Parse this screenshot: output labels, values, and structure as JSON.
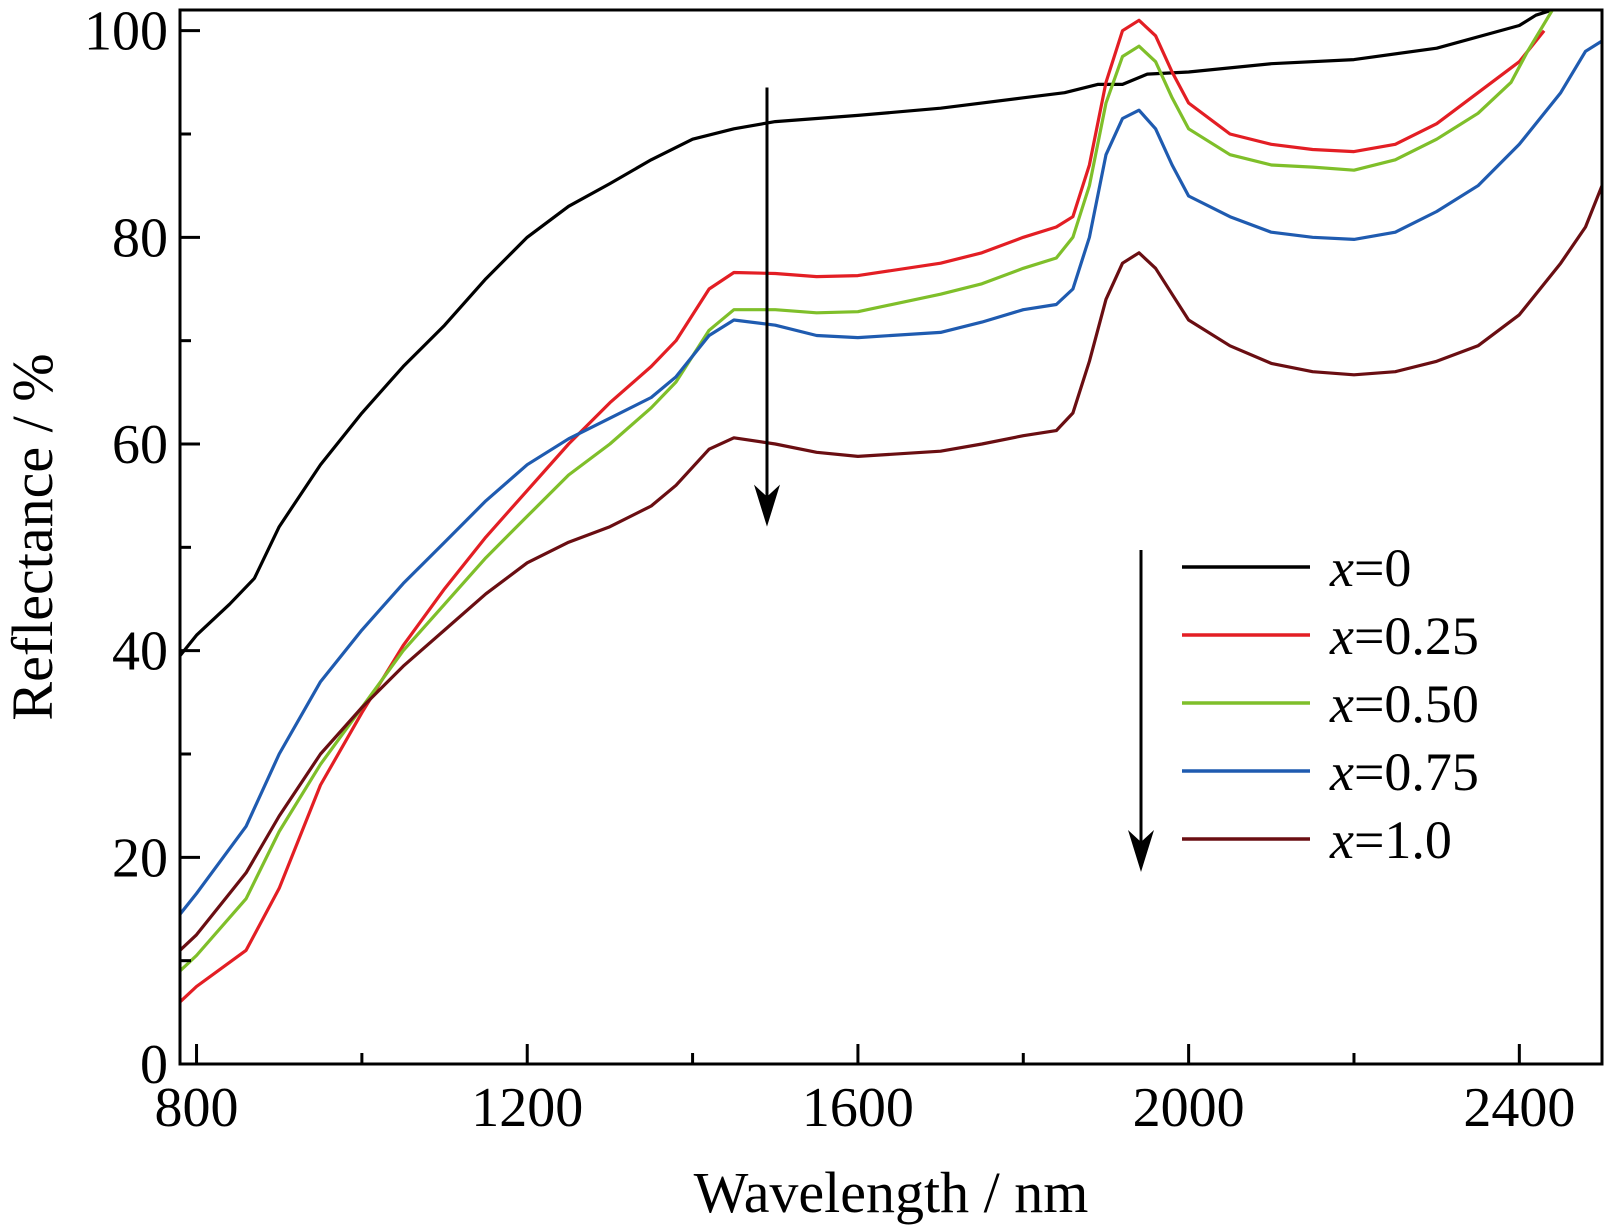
{
  "chart_data": {
    "type": "line",
    "xlabel": "Wavelength / nm",
    "ylabel": "Reflectance / %",
    "xlim": [
      780,
      2500
    ],
    "ylim": [
      0,
      102
    ],
    "xticks": [
      800,
      1200,
      1600,
      2000,
      2400
    ],
    "xticks_minor": [
      1000,
      1400,
      1800,
      2200
    ],
    "yticks": [
      0,
      20,
      40,
      60,
      80,
      100
    ],
    "yticks_minor": [
      10,
      30,
      50,
      70,
      90
    ],
    "legend_position": "right-center",
    "legend_arrow": "down",
    "series": [
      {
        "name": "x=0",
        "var": "x",
        "value": "=0",
        "color": "#000000",
        "points": [
          [
            780,
            39.5
          ],
          [
            800,
            41.5
          ],
          [
            840,
            44.5
          ],
          [
            870,
            47
          ],
          [
            900,
            52
          ],
          [
            950,
            58
          ],
          [
            1000,
            63
          ],
          [
            1050,
            67.5
          ],
          [
            1100,
            71.5
          ],
          [
            1150,
            76
          ],
          [
            1200,
            80
          ],
          [
            1250,
            83
          ],
          [
            1300,
            85.2
          ],
          [
            1350,
            87.5
          ],
          [
            1400,
            89.5
          ],
          [
            1450,
            90.5
          ],
          [
            1500,
            91.2
          ],
          [
            1600,
            91.8
          ],
          [
            1700,
            92.5
          ],
          [
            1800,
            93.5
          ],
          [
            1850,
            94
          ],
          [
            1890,
            94.8
          ],
          [
            1920,
            94.8
          ],
          [
            1950,
            95.8
          ],
          [
            2000,
            96
          ],
          [
            2100,
            96.8
          ],
          [
            2200,
            97.2
          ],
          [
            2300,
            98.3
          ],
          [
            2400,
            100.5
          ],
          [
            2420,
            101.5
          ],
          [
            2440,
            102
          ]
        ]
      },
      {
        "name": "x=0.25",
        "var": "x",
        "value": "=0.25",
        "color": "#e31e24",
        "points": [
          [
            780,
            6
          ],
          [
            800,
            7.5
          ],
          [
            860,
            11
          ],
          [
            900,
            17
          ],
          [
            950,
            27
          ],
          [
            1000,
            34
          ],
          [
            1050,
            40.5
          ],
          [
            1100,
            46
          ],
          [
            1150,
            51
          ],
          [
            1200,
            55.5
          ],
          [
            1250,
            60
          ],
          [
            1300,
            64
          ],
          [
            1350,
            67.5
          ],
          [
            1380,
            70
          ],
          [
            1420,
            75
          ],
          [
            1450,
            76.6
          ],
          [
            1500,
            76.5
          ],
          [
            1550,
            76.2
          ],
          [
            1600,
            76.3
          ],
          [
            1700,
            77.5
          ],
          [
            1750,
            78.5
          ],
          [
            1800,
            80
          ],
          [
            1840,
            81
          ],
          [
            1860,
            82
          ],
          [
            1880,
            87
          ],
          [
            1900,
            95
          ],
          [
            1920,
            100
          ],
          [
            1940,
            101
          ],
          [
            1960,
            99.5
          ],
          [
            1980,
            96
          ],
          [
            2000,
            93
          ],
          [
            2050,
            90
          ],
          [
            2100,
            89
          ],
          [
            2150,
            88.5
          ],
          [
            2200,
            88.3
          ],
          [
            2250,
            89
          ],
          [
            2300,
            91
          ],
          [
            2350,
            94
          ],
          [
            2400,
            97
          ],
          [
            2430,
            100
          ]
        ]
      },
      {
        "name": "x=0.50",
        "var": "x",
        "value": "=0.50",
        "color": "#7fbf2a",
        "points": [
          [
            780,
            9
          ],
          [
            800,
            10.5
          ],
          [
            860,
            16
          ],
          [
            900,
            22.5
          ],
          [
            950,
            29
          ],
          [
            1000,
            34.5
          ],
          [
            1050,
            40
          ],
          [
            1100,
            44.5
          ],
          [
            1150,
            49
          ],
          [
            1200,
            53
          ],
          [
            1250,
            57
          ],
          [
            1300,
            60
          ],
          [
            1350,
            63.5
          ],
          [
            1380,
            66
          ],
          [
            1420,
            71
          ],
          [
            1450,
            73
          ],
          [
            1500,
            73
          ],
          [
            1550,
            72.7
          ],
          [
            1600,
            72.8
          ],
          [
            1700,
            74.5
          ],
          [
            1750,
            75.5
          ],
          [
            1800,
            77
          ],
          [
            1840,
            78
          ],
          [
            1860,
            80
          ],
          [
            1880,
            85
          ],
          [
            1900,
            93
          ],
          [
            1920,
            97.5
          ],
          [
            1940,
            98.5
          ],
          [
            1960,
            97
          ],
          [
            1980,
            93.5
          ],
          [
            2000,
            90.5
          ],
          [
            2050,
            88
          ],
          [
            2100,
            87
          ],
          [
            2150,
            86.8
          ],
          [
            2200,
            86.5
          ],
          [
            2250,
            87.5
          ],
          [
            2300,
            89.5
          ],
          [
            2350,
            92
          ],
          [
            2390,
            95
          ],
          [
            2410,
            98
          ],
          [
            2440,
            102
          ]
        ]
      },
      {
        "name": "x=0.75",
        "var": "x",
        "value": "=0.75",
        "color": "#1f5bb0",
        "points": [
          [
            780,
            14.5
          ],
          [
            800,
            16.5
          ],
          [
            860,
            23
          ],
          [
            900,
            30
          ],
          [
            950,
            37
          ],
          [
            1000,
            42
          ],
          [
            1050,
            46.5
          ],
          [
            1100,
            50.5
          ],
          [
            1150,
            54.5
          ],
          [
            1200,
            58
          ],
          [
            1250,
            60.5
          ],
          [
            1300,
            62.5
          ],
          [
            1350,
            64.5
          ],
          [
            1380,
            66.5
          ],
          [
            1420,
            70.5
          ],
          [
            1450,
            72
          ],
          [
            1500,
            71.5
          ],
          [
            1550,
            70.5
          ],
          [
            1600,
            70.3
          ],
          [
            1700,
            70.8
          ],
          [
            1750,
            71.8
          ],
          [
            1800,
            73
          ],
          [
            1840,
            73.5
          ],
          [
            1860,
            75
          ],
          [
            1880,
            80
          ],
          [
            1900,
            88
          ],
          [
            1920,
            91.5
          ],
          [
            1940,
            92.3
          ],
          [
            1960,
            90.5
          ],
          [
            1980,
            87
          ],
          [
            2000,
            84
          ],
          [
            2050,
            82
          ],
          [
            2100,
            80.5
          ],
          [
            2150,
            80
          ],
          [
            2200,
            79.8
          ],
          [
            2250,
            80.5
          ],
          [
            2300,
            82.5
          ],
          [
            2350,
            85
          ],
          [
            2400,
            89
          ],
          [
            2450,
            94
          ],
          [
            2480,
            98
          ],
          [
            2500,
            99
          ]
        ]
      },
      {
        "name": "x=1.0",
        "var": "x",
        "value": "=1.0",
        "color": "#6a0e12",
        "points": [
          [
            780,
            11
          ],
          [
            800,
            12.5
          ],
          [
            860,
            18.5
          ],
          [
            900,
            24
          ],
          [
            950,
            30
          ],
          [
            1000,
            34.5
          ],
          [
            1050,
            38.5
          ],
          [
            1100,
            42
          ],
          [
            1150,
            45.5
          ],
          [
            1200,
            48.5
          ],
          [
            1250,
            50.5
          ],
          [
            1300,
            52
          ],
          [
            1350,
            54
          ],
          [
            1380,
            56
          ],
          [
            1420,
            59.5
          ],
          [
            1450,
            60.6
          ],
          [
            1500,
            60
          ],
          [
            1550,
            59.2
          ],
          [
            1600,
            58.8
          ],
          [
            1700,
            59.3
          ],
          [
            1750,
            60
          ],
          [
            1800,
            60.8
          ],
          [
            1840,
            61.3
          ],
          [
            1860,
            63
          ],
          [
            1880,
            68
          ],
          [
            1900,
            74
          ],
          [
            1920,
            77.5
          ],
          [
            1940,
            78.5
          ],
          [
            1960,
            77
          ],
          [
            1980,
            74.5
          ],
          [
            2000,
            72
          ],
          [
            2050,
            69.5
          ],
          [
            2100,
            67.8
          ],
          [
            2150,
            67
          ],
          [
            2200,
            66.7
          ],
          [
            2250,
            67
          ],
          [
            2300,
            68
          ],
          [
            2350,
            69.5
          ],
          [
            2400,
            72.5
          ],
          [
            2450,
            77.5
          ],
          [
            2480,
            81
          ],
          [
            2500,
            85
          ]
        ]
      }
    ],
    "annotation_arrow": {
      "x": 1490,
      "y_start": 94.5,
      "y_end": 52
    }
  }
}
